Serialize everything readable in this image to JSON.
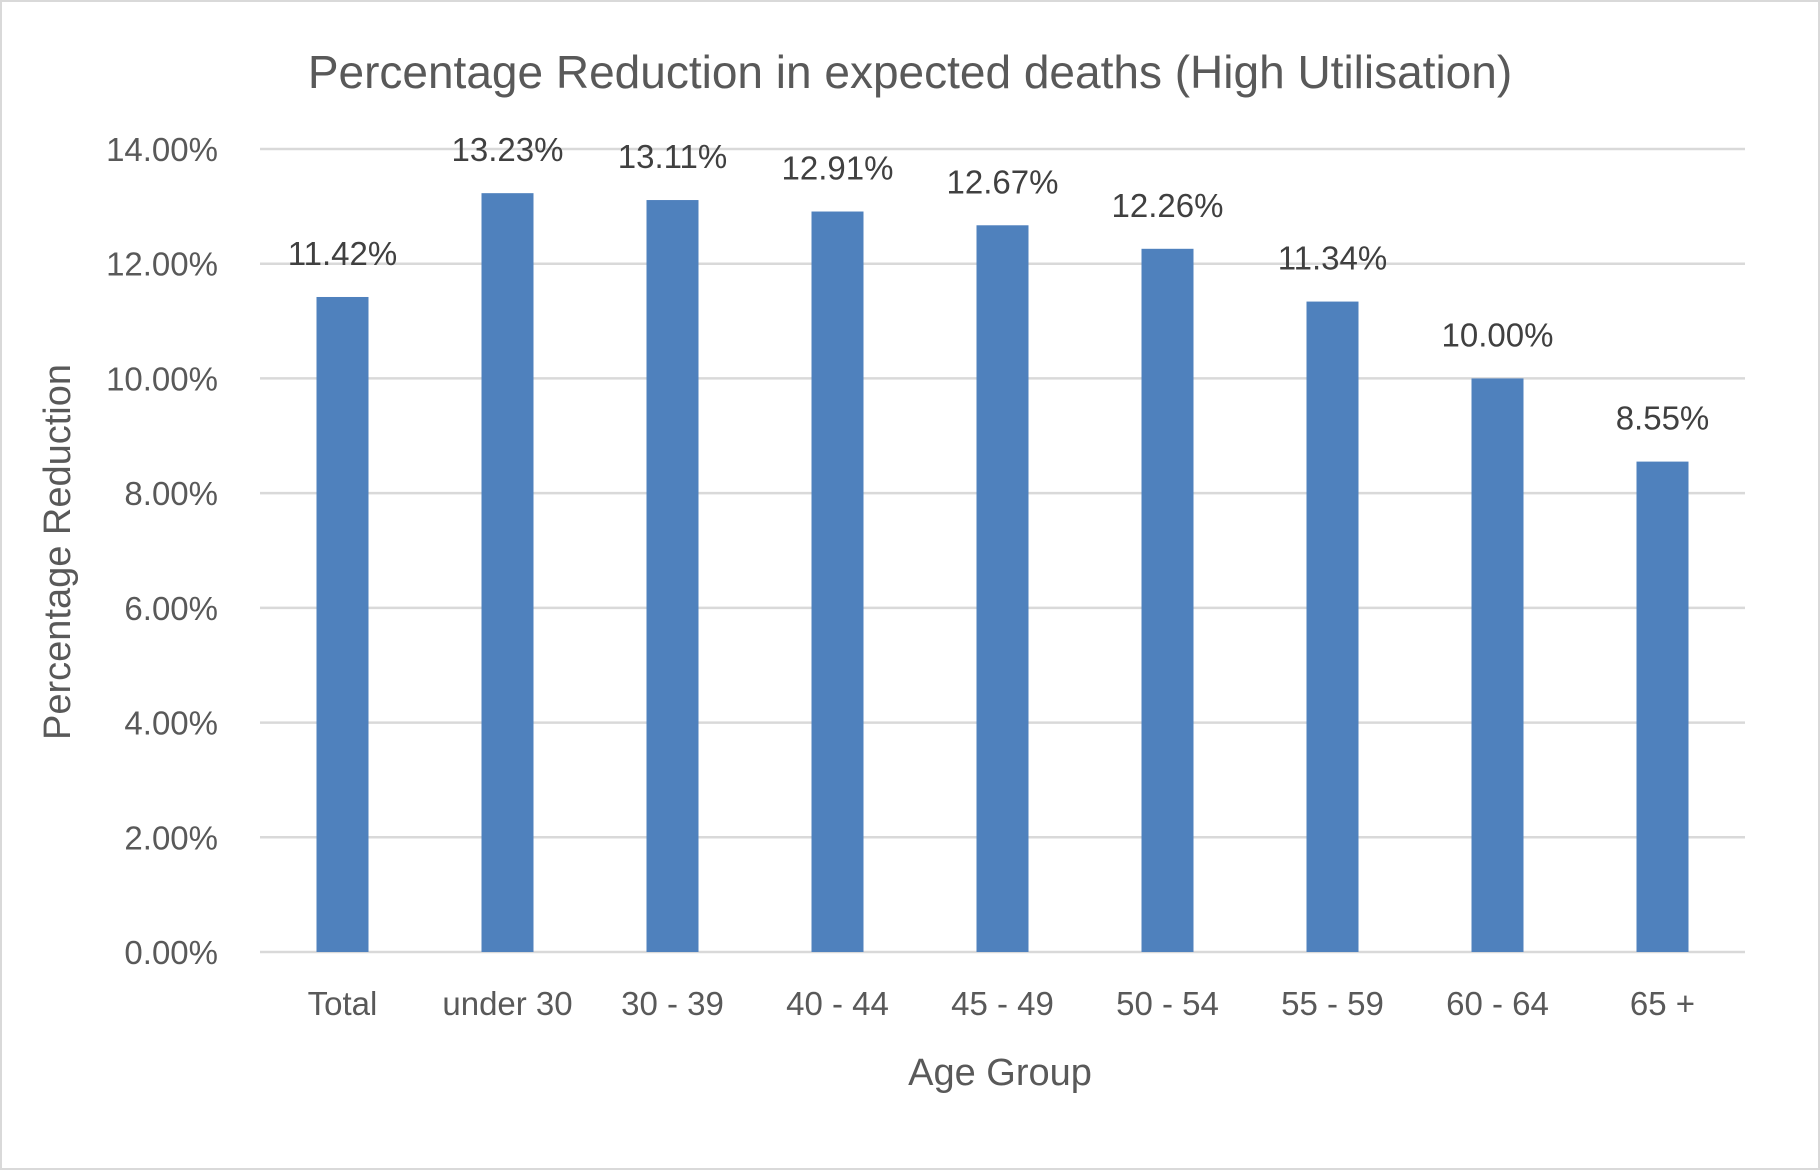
{
  "chart_data": {
    "type": "bar",
    "title": "Percentage Reduction in expected deaths (High Utilisation)",
    "xlabel": "Age Group",
    "ylabel": "Percentage Reduction",
    "categories": [
      "Total",
      "under 30",
      "30 - 39",
      "40 - 44",
      "45 - 49",
      "50 - 54",
      "55 - 59",
      "60 - 64",
      "65 +"
    ],
    "values": [
      11.42,
      13.23,
      13.11,
      12.91,
      12.67,
      12.26,
      11.34,
      10.0,
      8.55
    ],
    "data_labels": [
      "11.42%",
      "13.23%",
      "13.11%",
      "12.91%",
      "12.67%",
      "12.26%",
      "11.34%",
      "10.00%",
      "8.55%"
    ],
    "ylim": [
      0,
      14
    ],
    "y_ticks": [
      0,
      2,
      4,
      6,
      8,
      10,
      12,
      14
    ],
    "y_tick_labels": [
      "0.00%",
      "2.00%",
      "4.00%",
      "6.00%",
      "8.00%",
      "10.00%",
      "12.00%",
      "14.00%"
    ],
    "grid": true,
    "legend": "none",
    "bar_color": "#4f81bd"
  }
}
